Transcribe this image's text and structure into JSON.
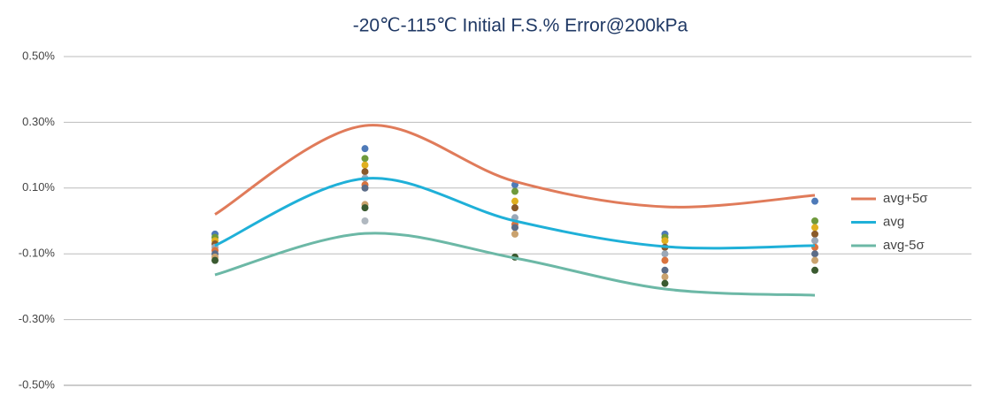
{
  "chart_data": {
    "type": "line",
    "title": "-20℃-115℃ Initial F.S.% Error@200kPa",
    "categories": [
      null,
      null,
      null,
      null,
      null
    ],
    "series": [
      {
        "name": "avg+5σ",
        "color": "#e07b5a",
        "values": [
          0.02,
          0.29,
          0.12,
          0.043,
          0.078
        ]
      },
      {
        "name": "avg",
        "color": "#1fb0d8",
        "values": [
          -0.075,
          0.129,
          0.0,
          -0.078,
          -0.075
        ]
      },
      {
        "name": "avg-5σ",
        "color": "#6cb8a6",
        "values": [
          -0.164,
          -0.038,
          -0.113,
          -0.207,
          -0.226
        ]
      }
    ],
    "samples": [
      [
        -0.04,
        -0.05,
        -0.06,
        -0.07,
        -0.08,
        -0.09,
        -0.1,
        -0.11,
        -0.12
      ],
      [
        0.22,
        0.19,
        0.17,
        0.15,
        0.13,
        0.11,
        0.1,
        0.05,
        0.04,
        0.0
      ],
      [
        0.11,
        0.09,
        0.06,
        0.04,
        0.01,
        -0.01,
        -0.02,
        -0.04,
        -0.11
      ],
      [
        -0.04,
        -0.05,
        -0.06,
        -0.08,
        -0.1,
        -0.12,
        -0.15,
        -0.17,
        -0.19
      ],
      [
        0.06,
        0.0,
        -0.02,
        -0.04,
        -0.06,
        -0.08,
        -0.1,
        -0.12,
        -0.15
      ]
    ],
    "sample_colors": [
      "#4e7ab8",
      "#6f9a3c",
      "#e0b020",
      "#8a5a2a",
      "#9aa8b8",
      "#d9733f",
      "#5b6c88",
      "#c9a26e",
      "#3a5a30",
      "#b0b8c0"
    ],
    "ylim": [
      -0.5,
      0.5
    ],
    "yticks": [
      {
        "value": -0.5,
        "label": "-0.50%"
      },
      {
        "value": -0.3,
        "label": "-0.30%"
      },
      {
        "value": -0.1,
        "label": "-0.10%"
      },
      {
        "value": 0.1,
        "label": "0.10%"
      },
      {
        "value": 0.3,
        "label": "0.30%"
      },
      {
        "value": 0.5,
        "label": "0.50%"
      }
    ],
    "grid": true,
    "legend": "right"
  }
}
